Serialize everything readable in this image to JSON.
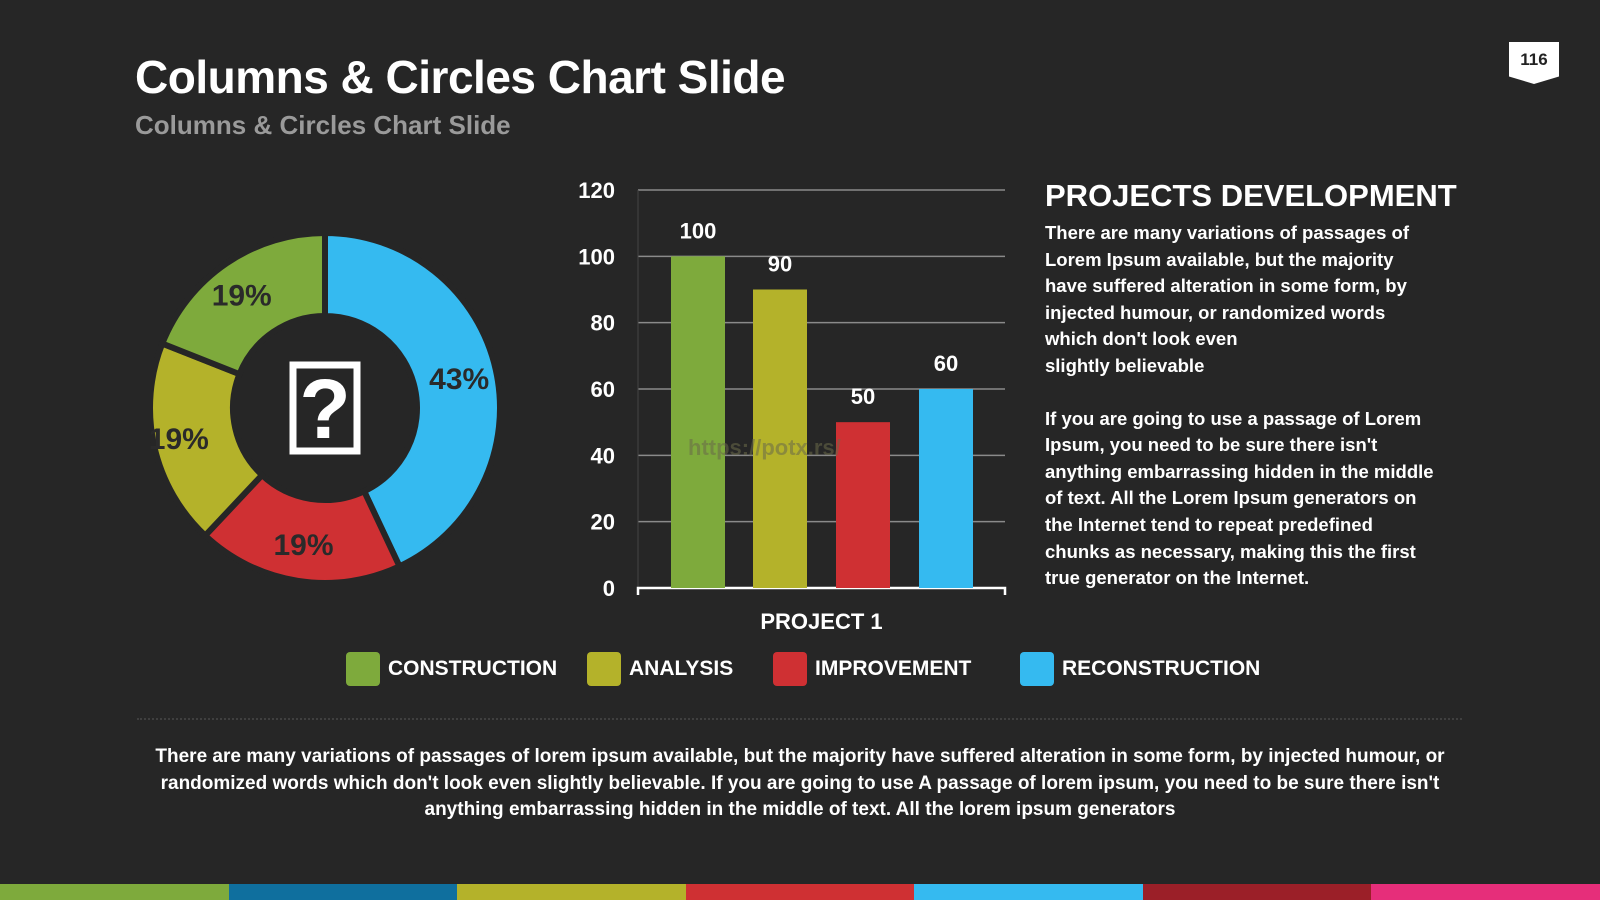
{
  "slide": {
    "title": "Columns & Circles Chart Slide",
    "subtitle": "Columns & Circles Chart Slide",
    "page_number": "116"
  },
  "colors": {
    "background": "#262626",
    "construction": "#7eaa3c",
    "analysis": "#b4b22a",
    "improvement": "#cf3033",
    "reconstruction": "#35baf0",
    "bottom_bar": [
      "#7eaa3c",
      "#0f6f9e",
      "#b4b22a",
      "#cf3033",
      "#35baf0",
      "#9b1f28",
      "#e62e7a"
    ]
  },
  "chart_data": [
    {
      "type": "pie",
      "center_icon": "question-mark-icon",
      "slices": [
        {
          "name": "RECONSTRUCTION",
          "value": 43,
          "label": "43%",
          "color": "#35baf0"
        },
        {
          "name": "IMPROVEMENT",
          "value": 19,
          "label": "19%",
          "color": "#cf3033"
        },
        {
          "name": "ANALYSIS",
          "value": 19,
          "label": "19%",
          "color": "#b4b22a"
        },
        {
          "name": "CONSTRUCTION",
          "value": 19,
          "label": "19%",
          "color": "#7eaa3c"
        }
      ]
    },
    {
      "type": "bar",
      "categories": [
        "PROJECT 1"
      ],
      "series": [
        {
          "name": "CONSTRUCTION",
          "values": [
            100
          ],
          "color": "#7eaa3c"
        },
        {
          "name": "ANALYSIS",
          "values": [
            90
          ],
          "color": "#b4b22a"
        },
        {
          "name": "IMPROVEMENT",
          "values": [
            50
          ],
          "color": "#cf3033"
        },
        {
          "name": "RECONSTRUCTION",
          "values": [
            60
          ],
          "color": "#35baf0"
        }
      ],
      "ylim": [
        0,
        120
      ],
      "yticks": [
        0,
        20,
        40,
        60,
        80,
        100,
        120
      ],
      "grid": true,
      "legend_position": "bottom",
      "watermark": "https://potx.rs/"
    }
  ],
  "legend": [
    {
      "label": "CONSTRUCTION",
      "color": "#7eaa3c"
    },
    {
      "label": "ANALYSIS",
      "color": "#b4b22a"
    },
    {
      "label": "IMPROVEMENT",
      "color": "#cf3033"
    },
    {
      "label": "RECONSTRUCTION",
      "color": "#35baf0"
    }
  ],
  "side_panel": {
    "heading": "PROJECTS DEVELOPMENT",
    "paragraph1": "There are many variations of passages of\nLorem Ipsum available, but the majority\nhave suffered alteration in some form, by\ninjected humour, or randomized words\nwhich don't look even\nslightly believable",
    "paragraph2": " If you are going to use a passage of Lorem\nIpsum, you need to be sure there isn't\nanything embarrassing hidden in the middle\nof text. All the Lorem Ipsum generators on\nthe Internet tend to repeat predefined\nchunks as necessary, making this the first\ntrue generator on the Internet."
  },
  "footer_text": "There are many variations of passages of lorem ipsum available, but the majority have suffered alteration in some form, by injected humour, or randomized words which don't look even slightly believable. If you are going to use A passage of lorem ipsum, you need to be sure there isn't anything embarrassing hidden in the middle of text. All the lorem ipsum generators"
}
